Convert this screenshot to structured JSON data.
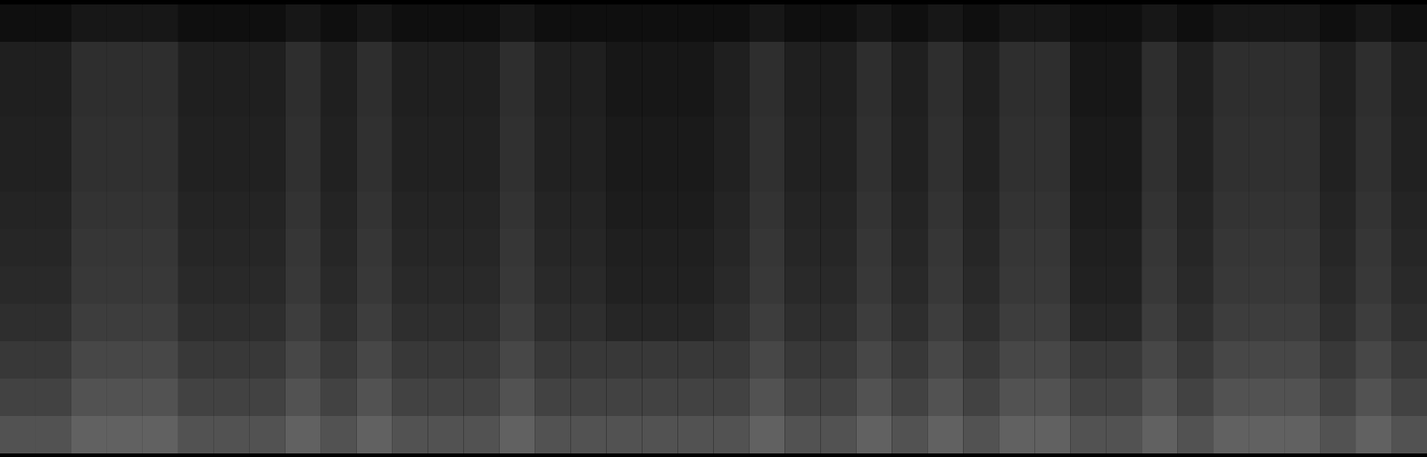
{
  "chart_data": {
    "type": "heatmap",
    "tick_labels": false,
    "zlim": [
      0,
      1
    ],
    "z": [
      [
        0.06,
        0.06,
        0.09,
        0.09,
        0.09,
        0.06,
        0.06,
        0.06,
        0.09,
        0.06,
        0.09,
        0.06,
        0.06,
        0.06,
        0.09,
        0.06,
        0.06,
        0.06,
        0.06,
        0.06,
        0.06,
        0.09,
        0.06,
        0.06,
        0.09,
        0.06,
        0.09,
        0.06,
        0.09,
        0.09,
        0.06,
        0.06,
        0.09,
        0.06,
        0.09,
        0.09,
        0.09,
        0.06,
        0.09,
        0.06
      ],
      [
        0.12,
        0.12,
        0.18,
        0.18,
        0.18,
        0.12,
        0.12,
        0.12,
        0.18,
        0.12,
        0.18,
        0.12,
        0.12,
        0.12,
        0.18,
        0.12,
        0.12,
        0.09,
        0.09,
        0.09,
        0.12,
        0.18,
        0.12,
        0.12,
        0.18,
        0.12,
        0.18,
        0.12,
        0.18,
        0.18,
        0.09,
        0.09,
        0.18,
        0.12,
        0.18,
        0.18,
        0.18,
        0.12,
        0.18,
        0.12
      ],
      [
        0.12,
        0.12,
        0.18,
        0.18,
        0.18,
        0.12,
        0.12,
        0.12,
        0.18,
        0.12,
        0.18,
        0.12,
        0.12,
        0.12,
        0.18,
        0.12,
        0.12,
        0.09,
        0.09,
        0.09,
        0.12,
        0.18,
        0.12,
        0.12,
        0.18,
        0.12,
        0.18,
        0.12,
        0.18,
        0.18,
        0.09,
        0.09,
        0.18,
        0.12,
        0.18,
        0.18,
        0.18,
        0.12,
        0.18,
        0.12
      ],
      [
        0.13,
        0.13,
        0.19,
        0.19,
        0.19,
        0.13,
        0.13,
        0.13,
        0.19,
        0.13,
        0.19,
        0.13,
        0.13,
        0.13,
        0.19,
        0.13,
        0.13,
        0.1,
        0.1,
        0.1,
        0.13,
        0.19,
        0.13,
        0.13,
        0.19,
        0.13,
        0.19,
        0.13,
        0.19,
        0.19,
        0.1,
        0.1,
        0.19,
        0.13,
        0.19,
        0.19,
        0.19,
        0.13,
        0.19,
        0.13
      ],
      [
        0.13,
        0.13,
        0.19,
        0.19,
        0.19,
        0.13,
        0.13,
        0.13,
        0.19,
        0.13,
        0.19,
        0.13,
        0.13,
        0.13,
        0.19,
        0.13,
        0.13,
        0.1,
        0.1,
        0.1,
        0.13,
        0.19,
        0.13,
        0.13,
        0.19,
        0.13,
        0.19,
        0.13,
        0.19,
        0.19,
        0.1,
        0.1,
        0.19,
        0.13,
        0.19,
        0.19,
        0.19,
        0.13,
        0.19,
        0.13
      ],
      [
        0.14,
        0.14,
        0.2,
        0.2,
        0.2,
        0.14,
        0.14,
        0.14,
        0.2,
        0.14,
        0.2,
        0.14,
        0.14,
        0.14,
        0.2,
        0.14,
        0.14,
        0.11,
        0.11,
        0.11,
        0.14,
        0.2,
        0.14,
        0.14,
        0.2,
        0.14,
        0.2,
        0.14,
        0.2,
        0.2,
        0.11,
        0.11,
        0.2,
        0.14,
        0.2,
        0.2,
        0.2,
        0.14,
        0.2,
        0.14
      ],
      [
        0.15,
        0.15,
        0.21,
        0.21,
        0.21,
        0.15,
        0.15,
        0.15,
        0.21,
        0.15,
        0.21,
        0.15,
        0.15,
        0.15,
        0.21,
        0.15,
        0.15,
        0.12,
        0.12,
        0.12,
        0.15,
        0.21,
        0.15,
        0.15,
        0.21,
        0.15,
        0.21,
        0.15,
        0.21,
        0.21,
        0.12,
        0.12,
        0.21,
        0.15,
        0.21,
        0.21,
        0.21,
        0.15,
        0.21,
        0.15
      ],
      [
        0.16,
        0.16,
        0.22,
        0.22,
        0.22,
        0.16,
        0.16,
        0.16,
        0.22,
        0.16,
        0.22,
        0.16,
        0.16,
        0.16,
        0.22,
        0.16,
        0.16,
        0.13,
        0.13,
        0.13,
        0.16,
        0.22,
        0.16,
        0.16,
        0.22,
        0.16,
        0.22,
        0.16,
        0.22,
        0.22,
        0.13,
        0.13,
        0.22,
        0.16,
        0.22,
        0.22,
        0.22,
        0.16,
        0.22,
        0.16
      ],
      [
        0.18,
        0.18,
        0.24,
        0.24,
        0.24,
        0.18,
        0.18,
        0.18,
        0.24,
        0.18,
        0.24,
        0.18,
        0.18,
        0.18,
        0.24,
        0.18,
        0.18,
        0.15,
        0.15,
        0.15,
        0.18,
        0.24,
        0.18,
        0.18,
        0.24,
        0.18,
        0.24,
        0.18,
        0.24,
        0.24,
        0.15,
        0.15,
        0.24,
        0.18,
        0.24,
        0.24,
        0.24,
        0.18,
        0.24,
        0.18
      ],
      [
        0.22,
        0.22,
        0.28,
        0.28,
        0.28,
        0.22,
        0.22,
        0.22,
        0.28,
        0.22,
        0.28,
        0.22,
        0.22,
        0.22,
        0.28,
        0.22,
        0.22,
        0.22,
        0.22,
        0.22,
        0.22,
        0.28,
        0.22,
        0.22,
        0.28,
        0.22,
        0.28,
        0.22,
        0.28,
        0.28,
        0.22,
        0.22,
        0.28,
        0.22,
        0.28,
        0.28,
        0.28,
        0.22,
        0.28,
        0.22
      ],
      [
        0.26,
        0.26,
        0.32,
        0.32,
        0.32,
        0.26,
        0.26,
        0.26,
        0.32,
        0.26,
        0.32,
        0.26,
        0.26,
        0.26,
        0.32,
        0.26,
        0.26,
        0.26,
        0.26,
        0.26,
        0.26,
        0.32,
        0.26,
        0.26,
        0.32,
        0.26,
        0.32,
        0.26,
        0.32,
        0.32,
        0.26,
        0.26,
        0.32,
        0.26,
        0.32,
        0.32,
        0.32,
        0.26,
        0.32,
        0.26
      ],
      [
        0.32,
        0.32,
        0.38,
        0.38,
        0.38,
        0.32,
        0.32,
        0.32,
        0.38,
        0.32,
        0.38,
        0.32,
        0.32,
        0.32,
        0.38,
        0.32,
        0.32,
        0.32,
        0.32,
        0.32,
        0.32,
        0.38,
        0.32,
        0.32,
        0.38,
        0.32,
        0.38,
        0.32,
        0.38,
        0.38,
        0.32,
        0.32,
        0.38,
        0.32,
        0.38,
        0.38,
        0.38,
        0.32,
        0.38,
        0.32
      ]
    ]
  }
}
